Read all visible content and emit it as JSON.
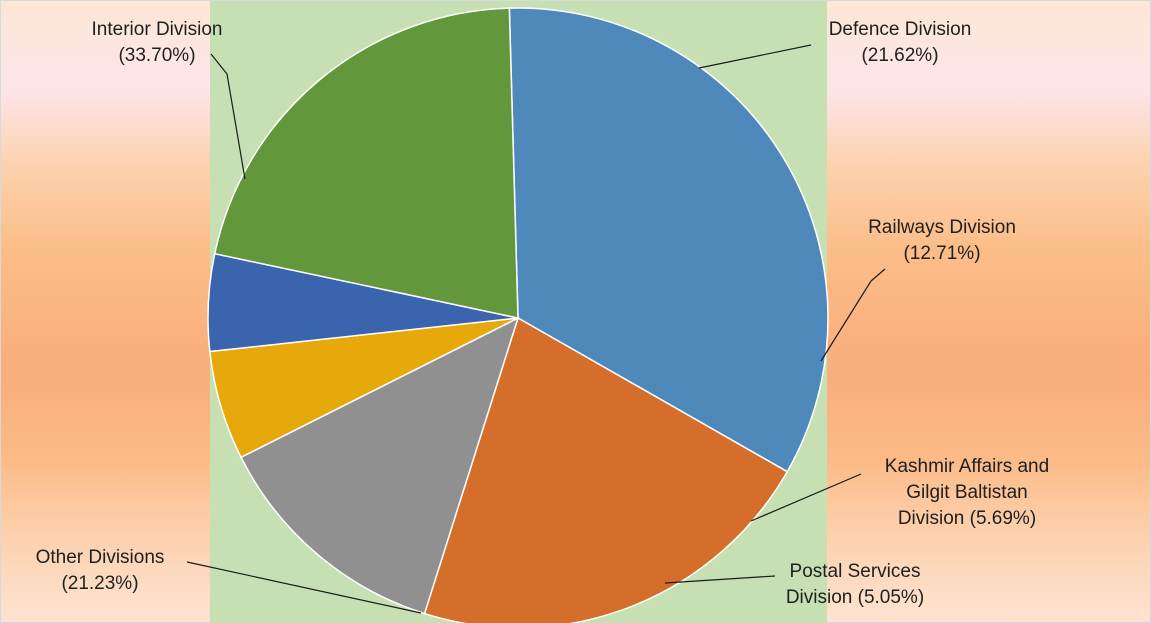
{
  "chart_data": {
    "type": "pie",
    "slices": [
      {
        "name": "Interior Division",
        "value": 33.7,
        "display": "(33.70%)",
        "color": "#4f88bb"
      },
      {
        "name": "Defence Division",
        "value": 21.62,
        "display": "(21.62%)",
        "color": "#d46e2a"
      },
      {
        "name": "Railways Division",
        "value": 12.71,
        "display": "(12.71%)",
        "color": "#909090"
      },
      {
        "name": "Kashmir Affairs and Gilgit Baltistan Division",
        "value": 5.69,
        "display": "(5.69%)",
        "color": "#e6a80a"
      },
      {
        "name": "Postal Services Division",
        "value": 5.05,
        "display": "(5.05%)",
        "color": "#3a64ad"
      },
      {
        "name": "Other Divisions",
        "value": 21.23,
        "display": "(21.23%)",
        "color": "#62983b"
      }
    ],
    "labels": {
      "interior": [
        "Interior Division",
        "(33.70%)"
      ],
      "defence": [
        "Defence Division",
        "(21.62%)"
      ],
      "railways": [
        "Railways Division",
        "(12.71%)"
      ],
      "kashmir": [
        "Kashmir Affairs and",
        "Gilgit Baltistan",
        "Division (5.69%)"
      ],
      "postal": [
        "Postal Services",
        "Division (5.05%)"
      ],
      "other": [
        "Other Divisions",
        "(21.23%)"
      ]
    },
    "title": "",
    "legend": "none",
    "plot_area_color": "#c6e0b4"
  }
}
